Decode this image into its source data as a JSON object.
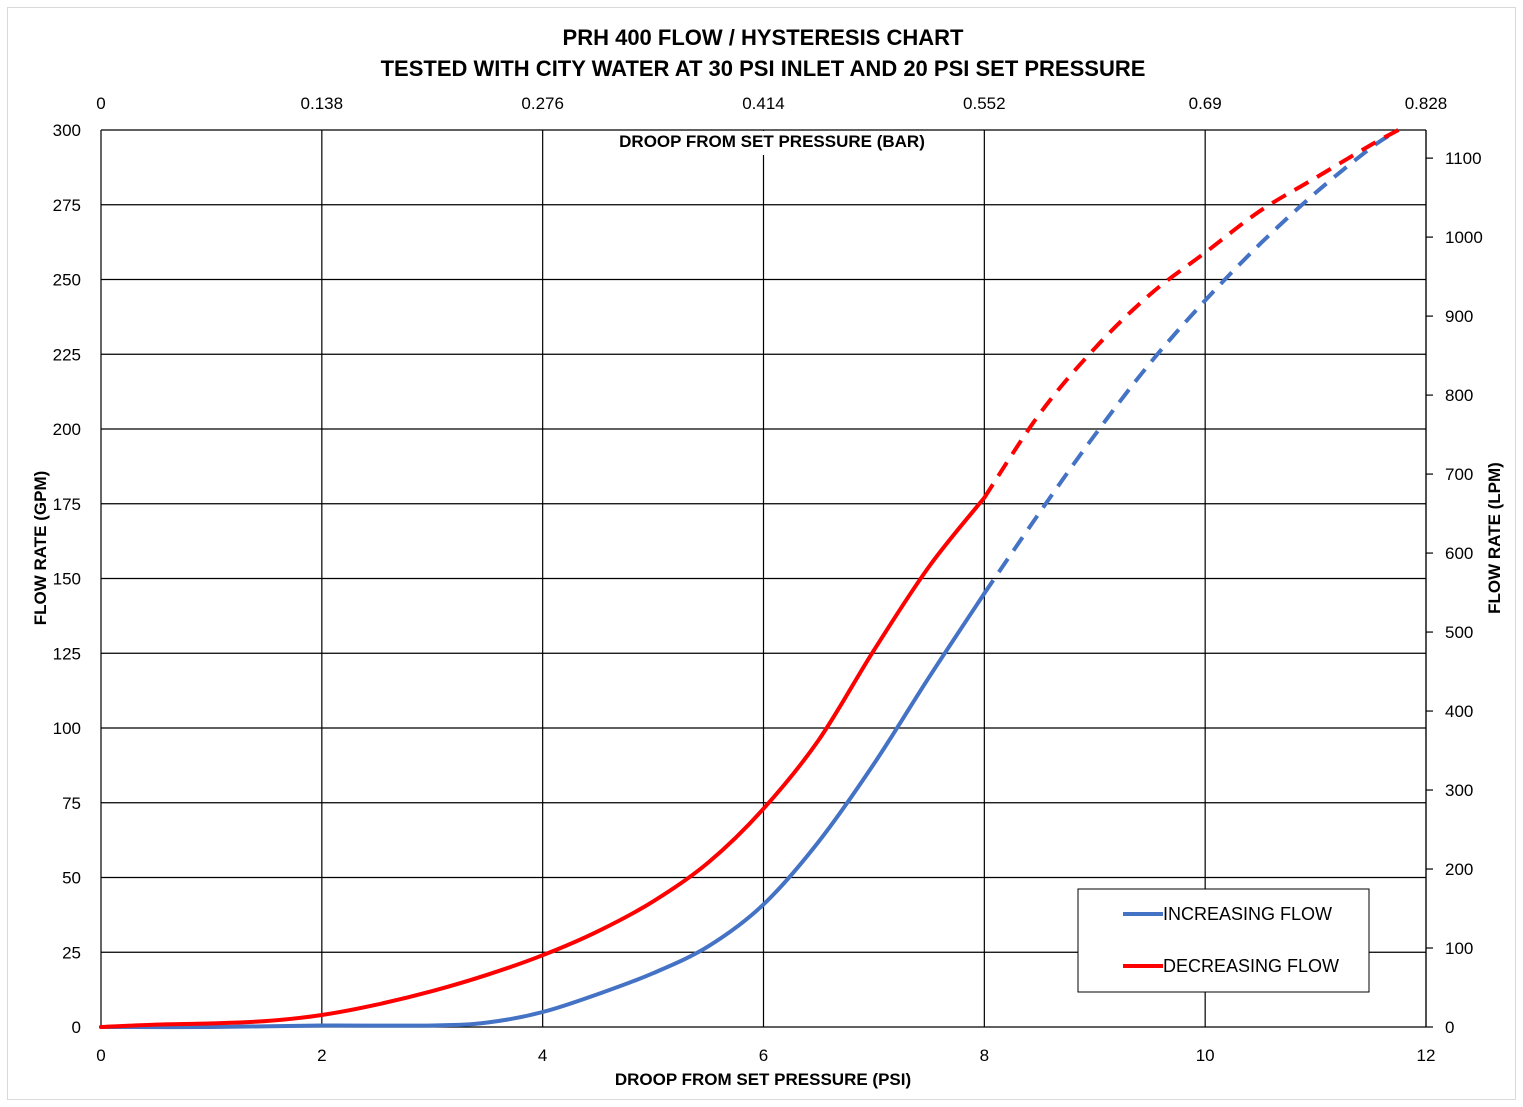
{
  "chart_data": {
    "type": "line",
    "title": "PRH 400 FLOW / HYSTERESIS CHART",
    "subtitle": "TESTED WITH CITY WATER AT 30 PSI INLET AND 20 PSI SET PRESSURE",
    "xlabel": "DROOP FROM SET PRESSURE (PSI)",
    "ylabel": "FLOW RATE (GPM)",
    "x2label": "DROOP FROM SET PRESSURE (BAR)",
    "y2label": "FLOW RATE (LPM)",
    "xlim": [
      0,
      12
    ],
    "ylim": [
      0,
      300
    ],
    "x2lim": [
      0,
      0.828
    ],
    "y2lim": [
      0,
      1135.6
    ],
    "xticks": [
      "0",
      "2",
      "4",
      "6",
      "8",
      "10",
      "12"
    ],
    "yticks": [
      "0",
      "25",
      "50",
      "75",
      "100",
      "125",
      "150",
      "175",
      "200",
      "225",
      "250",
      "275",
      "300"
    ],
    "x2ticks": [
      "0",
      "0.138",
      "0.276",
      "0.414",
      "0.552",
      "0.69",
      "0.828"
    ],
    "y2ticks": [
      "0",
      "100",
      "200",
      "300",
      "400",
      "500",
      "600",
      "700",
      "800",
      "900",
      "1000",
      "1100"
    ],
    "grid": true,
    "legend_position": "bottom-right",
    "series": [
      {
        "name": "INCREASING FLOW",
        "color": "#4472C4",
        "solid": {
          "x": [
            0,
            1,
            2,
            3,
            3.5,
            4,
            4.5,
            5,
            5.5,
            6,
            6.5,
            7,
            7.5,
            8
          ],
          "y": [
            0,
            0,
            0.5,
            0.5,
            1.5,
            5,
            11,
            18,
            27,
            41,
            62,
            88,
            117,
            145
          ]
        },
        "projected": {
          "x": [
            8,
            8.5,
            9,
            9.5,
            10,
            10.5,
            11,
            11.5,
            11.75
          ],
          "y": [
            145,
            172,
            198,
            222,
            243,
            262,
            279,
            294,
            300
          ]
        }
      },
      {
        "name": "DECREASING FLOW",
        "color": "#FF0000",
        "solid": {
          "x": [
            0,
            0.5,
            1,
            1.5,
            2,
            2.5,
            3,
            3.5,
            4,
            4.5,
            5,
            5.5,
            6,
            6.5,
            7,
            7.5,
            8
          ],
          "y": [
            0,
            0.8,
            1.2,
            2,
            4,
            7.5,
            12,
            17.5,
            24,
            32,
            42,
            55,
            73,
            96,
            126,
            154,
            177
          ]
        },
        "projected": {
          "x": [
            8,
            8.5,
            9,
            9.5,
            10,
            10.5,
            11,
            11.5,
            11.75
          ],
          "y": [
            177,
            205,
            227,
            245,
            259,
            273,
            284,
            295,
            300
          ]
        }
      }
    ]
  }
}
